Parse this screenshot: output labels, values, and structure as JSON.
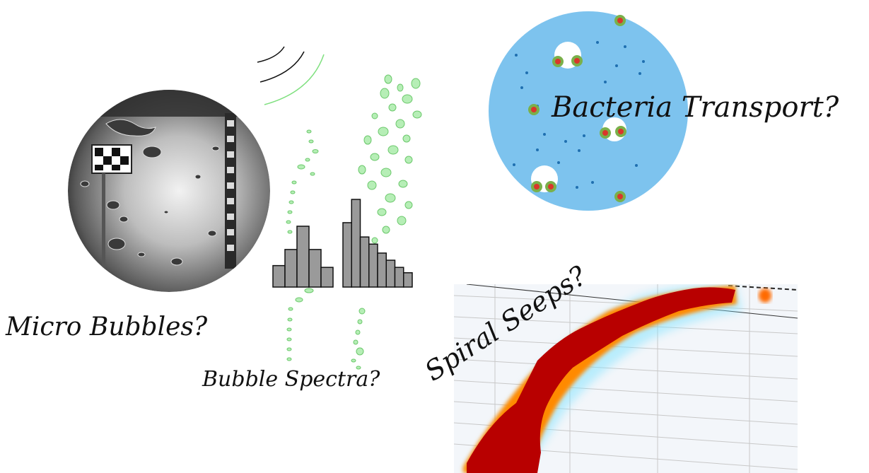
{
  "labels": {
    "micro_bubbles": "Micro Bubbles?",
    "bubble_spectra": "Bubble Spectra?",
    "bacteria_transport": "Bacteria Transport?",
    "spiral_seeps": "Spiral Seeps?"
  },
  "colors": {
    "background": "#ffffff",
    "bubble_green": "#a8eaa8",
    "bubble_green_stroke": "#6cc86c",
    "histogram_bar": "#9a9a9a",
    "bacteria_disc": "#7dc3ee",
    "bacteria_dot": "#1f6fb0",
    "bacteria_cluster": "#d9362b",
    "bacteria_halo": "#7ab04a",
    "seep_hot": "#b80000",
    "seep_warm": "#ff6a00",
    "seep_cool": "#7fe3ff"
  },
  "histograms": {
    "left_bars": [
      1.2,
      2.1,
      3.4,
      2.1,
      1.1
    ],
    "right_bars": [
      3.6,
      4.9,
      2.8,
      2.4,
      1.9,
      1.5,
      1.1,
      0.8
    ]
  }
}
